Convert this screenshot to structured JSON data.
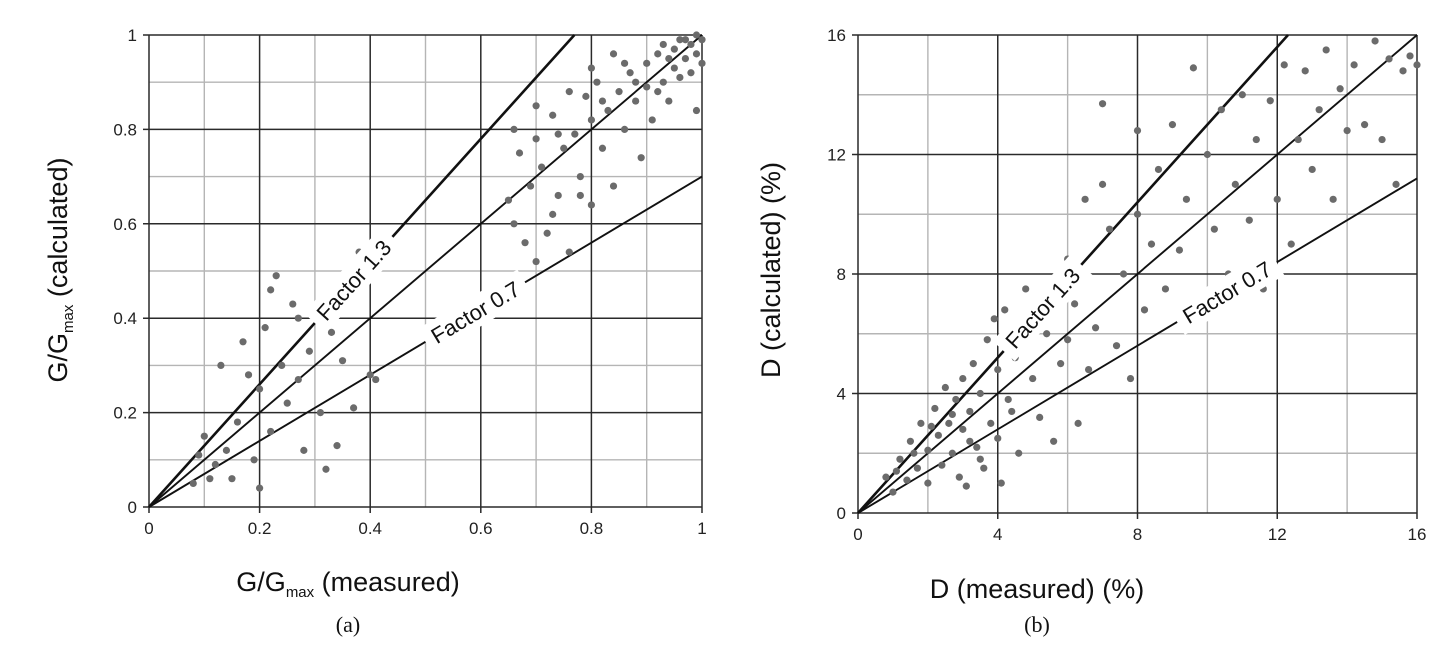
{
  "chart_data": [
    {
      "type": "scatter",
      "title": "",
      "caption": "(a)",
      "xlabel": {
        "main": "G/G",
        "sub": "max",
        "rest": " (measured)"
      },
      "ylabel": {
        "main": "G/G",
        "sub": "max",
        "rest": " (calculated)"
      },
      "xlim": [
        0,
        1
      ],
      "ylim": [
        0,
        1
      ],
      "xticks": [
        "0",
        "0.2",
        "0.4",
        "0.6",
        "0.8",
        "1"
      ],
      "yticks": [
        "0",
        "0.2",
        "0.4",
        "0.6",
        "0.8",
        "1"
      ],
      "grid": true,
      "marker_color": "#6b6b6b",
      "reference_lines": [
        {
          "label": "",
          "slope": 1.0
        },
        {
          "label": "Factor 1.3",
          "slope": 1.3
        },
        {
          "label": "Factor 0.7",
          "slope": 0.7
        }
      ],
      "points": [
        [
          0.1,
          0.15
        ],
        [
          0.12,
          0.09
        ],
        [
          0.14,
          0.12
        ],
        [
          0.15,
          0.06
        ],
        [
          0.16,
          0.18
        ],
        [
          0.18,
          0.28
        ],
        [
          0.2,
          0.25
        ],
        [
          0.21,
          0.38
        ],
        [
          0.22,
          0.46
        ],
        [
          0.23,
          0.49
        ],
        [
          0.24,
          0.3
        ],
        [
          0.25,
          0.22
        ],
        [
          0.26,
          0.43
        ],
        [
          0.27,
          0.27
        ],
        [
          0.28,
          0.12
        ],
        [
          0.29,
          0.33
        ],
        [
          0.3,
          0.42
        ],
        [
          0.31,
          0.2
        ],
        [
          0.32,
          0.08
        ],
        [
          0.33,
          0.37
        ],
        [
          0.35,
          0.31
        ],
        [
          0.36,
          0.48
        ],
        [
          0.38,
          0.54
        ],
        [
          0.4,
          0.28
        ],
        [
          0.41,
          0.27
        ],
        [
          0.37,
          0.21
        ],
        [
          0.19,
          0.1
        ],
        [
          0.17,
          0.35
        ],
        [
          0.13,
          0.3
        ],
        [
          0.11,
          0.06
        ],
        [
          0.08,
          0.05
        ],
        [
          0.09,
          0.11
        ],
        [
          0.2,
          0.04
        ],
        [
          0.22,
          0.16
        ],
        [
          0.27,
          0.4
        ],
        [
          0.34,
          0.13
        ],
        [
          0.65,
          0.65
        ],
        [
          0.66,
          0.6
        ],
        [
          0.68,
          0.56
        ],
        [
          0.69,
          0.68
        ],
        [
          0.7,
          0.52
        ],
        [
          0.7,
          0.78
        ],
        [
          0.71,
          0.72
        ],
        [
          0.72,
          0.58
        ],
        [
          0.73,
          0.83
        ],
        [
          0.74,
          0.66
        ],
        [
          0.75,
          0.76
        ],
        [
          0.76,
          0.54
        ],
        [
          0.77,
          0.79
        ],
        [
          0.78,
          0.7
        ],
        [
          0.79,
          0.87
        ],
        [
          0.8,
          0.64
        ],
        [
          0.8,
          0.82
        ],
        [
          0.81,
          0.9
        ],
        [
          0.82,
          0.76
        ],
        [
          0.83,
          0.84
        ],
        [
          0.84,
          0.68
        ],
        [
          0.85,
          0.88
        ],
        [
          0.86,
          0.8
        ],
        [
          0.87,
          0.92
        ],
        [
          0.88,
          0.86
        ],
        [
          0.89,
          0.74
        ],
        [
          0.9,
          0.94
        ],
        [
          0.9,
          0.89
        ],
        [
          0.91,
          0.82
        ],
        [
          0.92,
          0.96
        ],
        [
          0.93,
          0.9
        ],
        [
          0.94,
          0.86
        ],
        [
          0.95,
          0.97
        ],
        [
          0.95,
          0.93
        ],
        [
          0.96,
          0.91
        ],
        [
          0.97,
          0.99
        ],
        [
          0.97,
          0.95
        ],
        [
          0.98,
          0.98
        ],
        [
          0.98,
          0.92
        ],
        [
          0.99,
          1.0
        ],
        [
          0.99,
          0.96
        ],
        [
          1.0,
          0.99
        ],
        [
          1.0,
          0.94
        ],
        [
          0.96,
          0.99
        ],
        [
          0.94,
          0.95
        ],
        [
          0.92,
          0.88
        ],
        [
          0.86,
          0.94
        ],
        [
          0.84,
          0.96
        ],
        [
          0.8,
          0.93
        ],
        [
          0.7,
          0.85
        ],
        [
          0.67,
          0.75
        ],
        [
          0.73,
          0.62
        ],
        [
          0.76,
          0.88
        ],
        [
          0.66,
          0.8
        ],
        [
          0.99,
          0.84
        ],
        [
          0.88,
          0.9
        ],
        [
          0.93,
          0.98
        ],
        [
          0.82,
          0.86
        ],
        [
          0.78,
          0.66
        ],
        [
          0.74,
          0.79
        ]
      ]
    },
    {
      "type": "scatter",
      "title": "",
      "caption": "(b)",
      "xlabel": {
        "main": "D (measured) (%)",
        "sub": "",
        "rest": ""
      },
      "ylabel": {
        "main": "D (calculated) (%)",
        "sub": "",
        "rest": ""
      },
      "xlim": [
        0,
        16
      ],
      "ylim": [
        0,
        16
      ],
      "xticks": [
        "0",
        "4",
        "8",
        "12",
        "16"
      ],
      "yticks": [
        "0",
        "4",
        "8",
        "12",
        "16"
      ],
      "grid": true,
      "marker_color": "#6b6b6b",
      "reference_lines": [
        {
          "label": "",
          "slope": 1.0
        },
        {
          "label": "Factor 1.3",
          "slope": 1.3
        },
        {
          "label": "Factor 0.7",
          "slope": 0.7
        }
      ],
      "points": [
        [
          0.8,
          1.2
        ],
        [
          1.0,
          0.7
        ],
        [
          1.2,
          1.8
        ],
        [
          1.4,
          1.1
        ],
        [
          1.5,
          2.4
        ],
        [
          1.7,
          1.5
        ],
        [
          1.8,
          3.0
        ],
        [
          2.0,
          2.1
        ],
        [
          2.0,
          1.0
        ],
        [
          2.2,
          3.5
        ],
        [
          2.3,
          2.6
        ],
        [
          2.4,
          1.6
        ],
        [
          2.5,
          4.2
        ],
        [
          2.6,
          3.0
        ],
        [
          2.7,
          2.0
        ],
        [
          2.8,
          3.8
        ],
        [
          2.9,
          1.2
        ],
        [
          3.0,
          4.5
        ],
        [
          3.0,
          2.8
        ],
        [
          3.1,
          0.9
        ],
        [
          3.2,
          3.4
        ],
        [
          3.3,
          5.0
        ],
        [
          3.4,
          2.2
        ],
        [
          3.5,
          4.0
        ],
        [
          3.6,
          1.5
        ],
        [
          3.7,
          5.8
        ],
        [
          3.8,
          3.0
        ],
        [
          3.9,
          6.5
        ],
        [
          4.0,
          2.5
        ],
        [
          4.0,
          4.8
        ],
        [
          4.1,
          1.0
        ],
        [
          4.2,
          6.8
        ],
        [
          4.3,
          3.8
        ],
        [
          4.5,
          5.2
        ],
        [
          4.6,
          2.0
        ],
        [
          4.8,
          7.5
        ],
        [
          5.0,
          4.5
        ],
        [
          5.2,
          3.2
        ],
        [
          5.4,
          6.0
        ],
        [
          5.6,
          2.4
        ],
        [
          5.8,
          5.0
        ],
        [
          6.0,
          8.5
        ],
        [
          6.2,
          7.0
        ],
        [
          6.3,
          3.0
        ],
        [
          6.5,
          10.5
        ],
        [
          6.6,
          4.8
        ],
        [
          6.8,
          6.2
        ],
        [
          7.0,
          11.0
        ],
        [
          7.0,
          13.7
        ],
        [
          7.2,
          9.5
        ],
        [
          7.4,
          5.6
        ],
        [
          7.6,
          8.0
        ],
        [
          7.8,
          4.5
        ],
        [
          8.0,
          10.0
        ],
        [
          8.0,
          12.8
        ],
        [
          8.2,
          6.8
        ],
        [
          8.4,
          9.0
        ],
        [
          8.6,
          11.5
        ],
        [
          8.8,
          7.5
        ],
        [
          9.0,
          13.0
        ],
        [
          9.2,
          8.8
        ],
        [
          9.4,
          10.5
        ],
        [
          9.6,
          14.9
        ],
        [
          9.8,
          7.0
        ],
        [
          10.0,
          12.0
        ],
        [
          10.2,
          9.5
        ],
        [
          10.4,
          13.5
        ],
        [
          10.6,
          8.0
        ],
        [
          10.8,
          11.0
        ],
        [
          11.0,
          14.0
        ],
        [
          11.2,
          9.8
        ],
        [
          11.4,
          12.5
        ],
        [
          11.6,
          7.5
        ],
        [
          11.8,
          13.8
        ],
        [
          12.0,
          10.5
        ],
        [
          12.2,
          15.0
        ],
        [
          12.4,
          9.0
        ],
        [
          12.6,
          12.5
        ],
        [
          12.8,
          14.8
        ],
        [
          13.0,
          11.5
        ],
        [
          13.2,
          13.5
        ],
        [
          13.4,
          15.5
        ],
        [
          13.6,
          10.5
        ],
        [
          13.8,
          14.2
        ],
        [
          14.0,
          12.8
        ],
        [
          14.2,
          15.0
        ],
        [
          14.5,
          13.0
        ],
        [
          14.8,
          15.8
        ],
        [
          15.0,
          12.5
        ],
        [
          15.2,
          15.2
        ],
        [
          15.4,
          11.0
        ],
        [
          15.6,
          14.8
        ],
        [
          15.8,
          15.3
        ],
        [
          16.0,
          15.0
        ],
        [
          3.5,
          1.8
        ],
        [
          2.1,
          2.9
        ],
        [
          1.6,
          2.0
        ],
        [
          2.7,
          3.3
        ],
        [
          3.2,
          2.4
        ],
        [
          4.4,
          3.4
        ],
        [
          5.0,
          6.5
        ],
        [
          6.0,
          5.8
        ],
        [
          1.1,
          1.4
        ]
      ]
    }
  ]
}
